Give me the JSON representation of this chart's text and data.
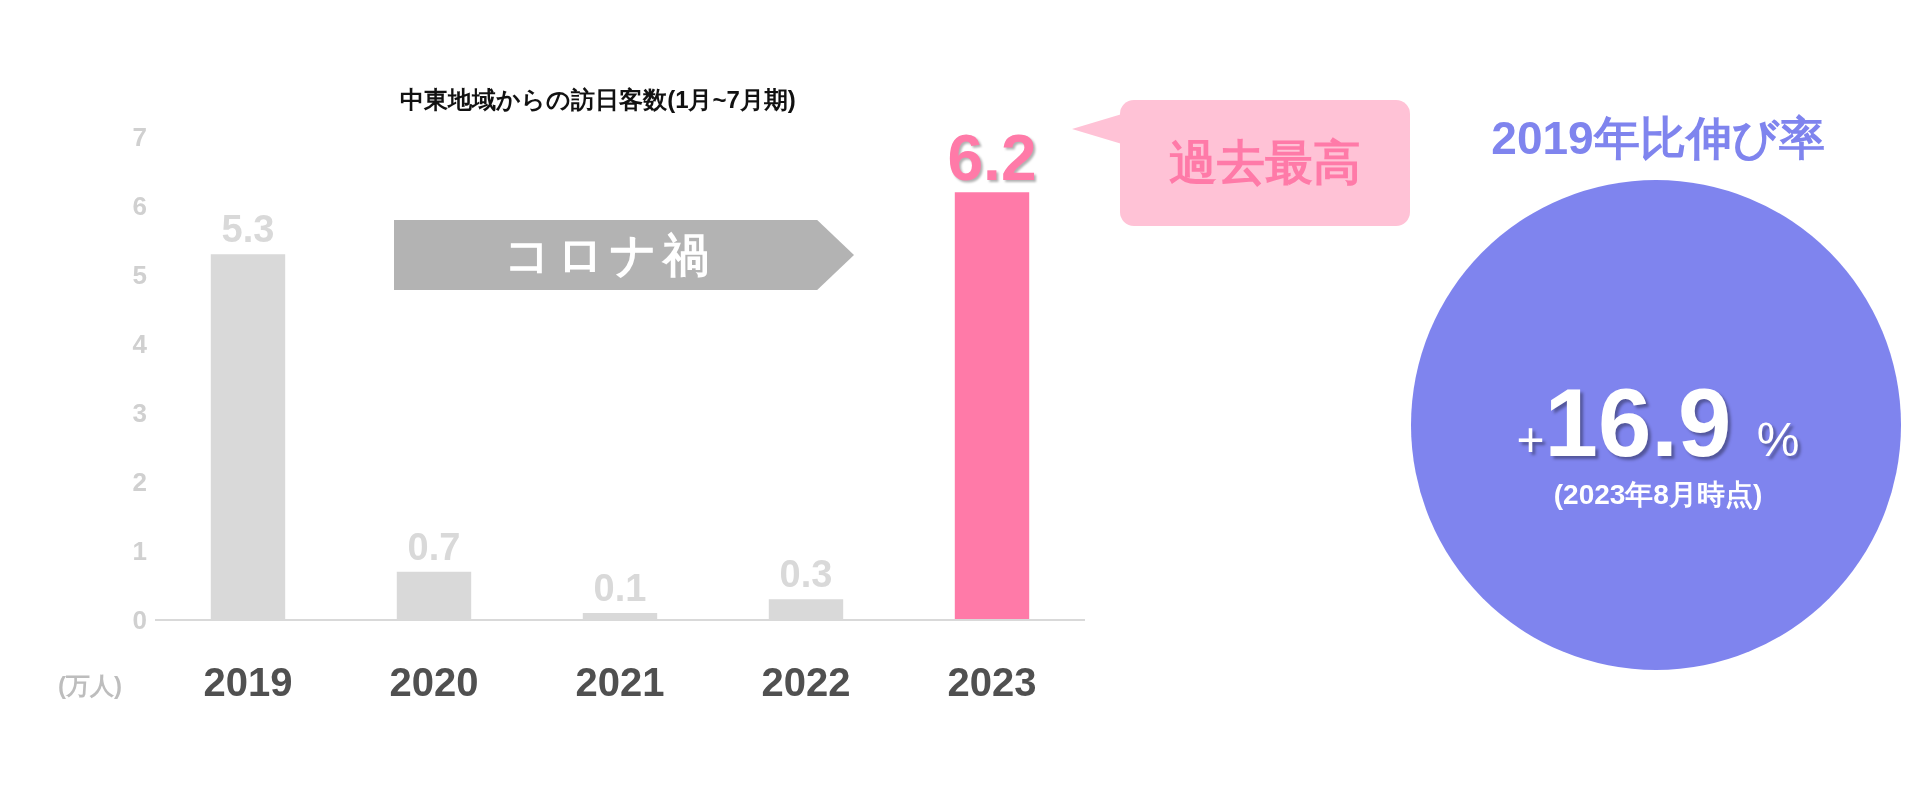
{
  "chart_data": [
    {
      "type": "bar",
      "title": "中東地域からの訪日客数(1月~7月期)",
      "ylabel": "(万人)",
      "categories": [
        "2019",
        "2020",
        "2021",
        "2022",
        "2023"
      ],
      "values": [
        5.3,
        0.7,
        0.1,
        0.3,
        6.2
      ],
      "colors": [
        "#d9d9d9",
        "#d9d9d9",
        "#d9d9d9",
        "#d9d9d9",
        "#ff7aa8"
      ],
      "ylim": [
        0,
        7
      ],
      "yticks": [
        0,
        1,
        2,
        3,
        4,
        5,
        6,
        7
      ],
      "grid": false,
      "legend": false,
      "data_labels": true,
      "annotations": [
        "コロナ禍",
        "過去最高"
      ]
    },
    {
      "type": "other",
      "title": "2019年比伸び率",
      "color": "#7f84ee",
      "annotations": [
        "+16.9 %",
        "(2023年8月時点)"
      ]
    }
  ]
}
